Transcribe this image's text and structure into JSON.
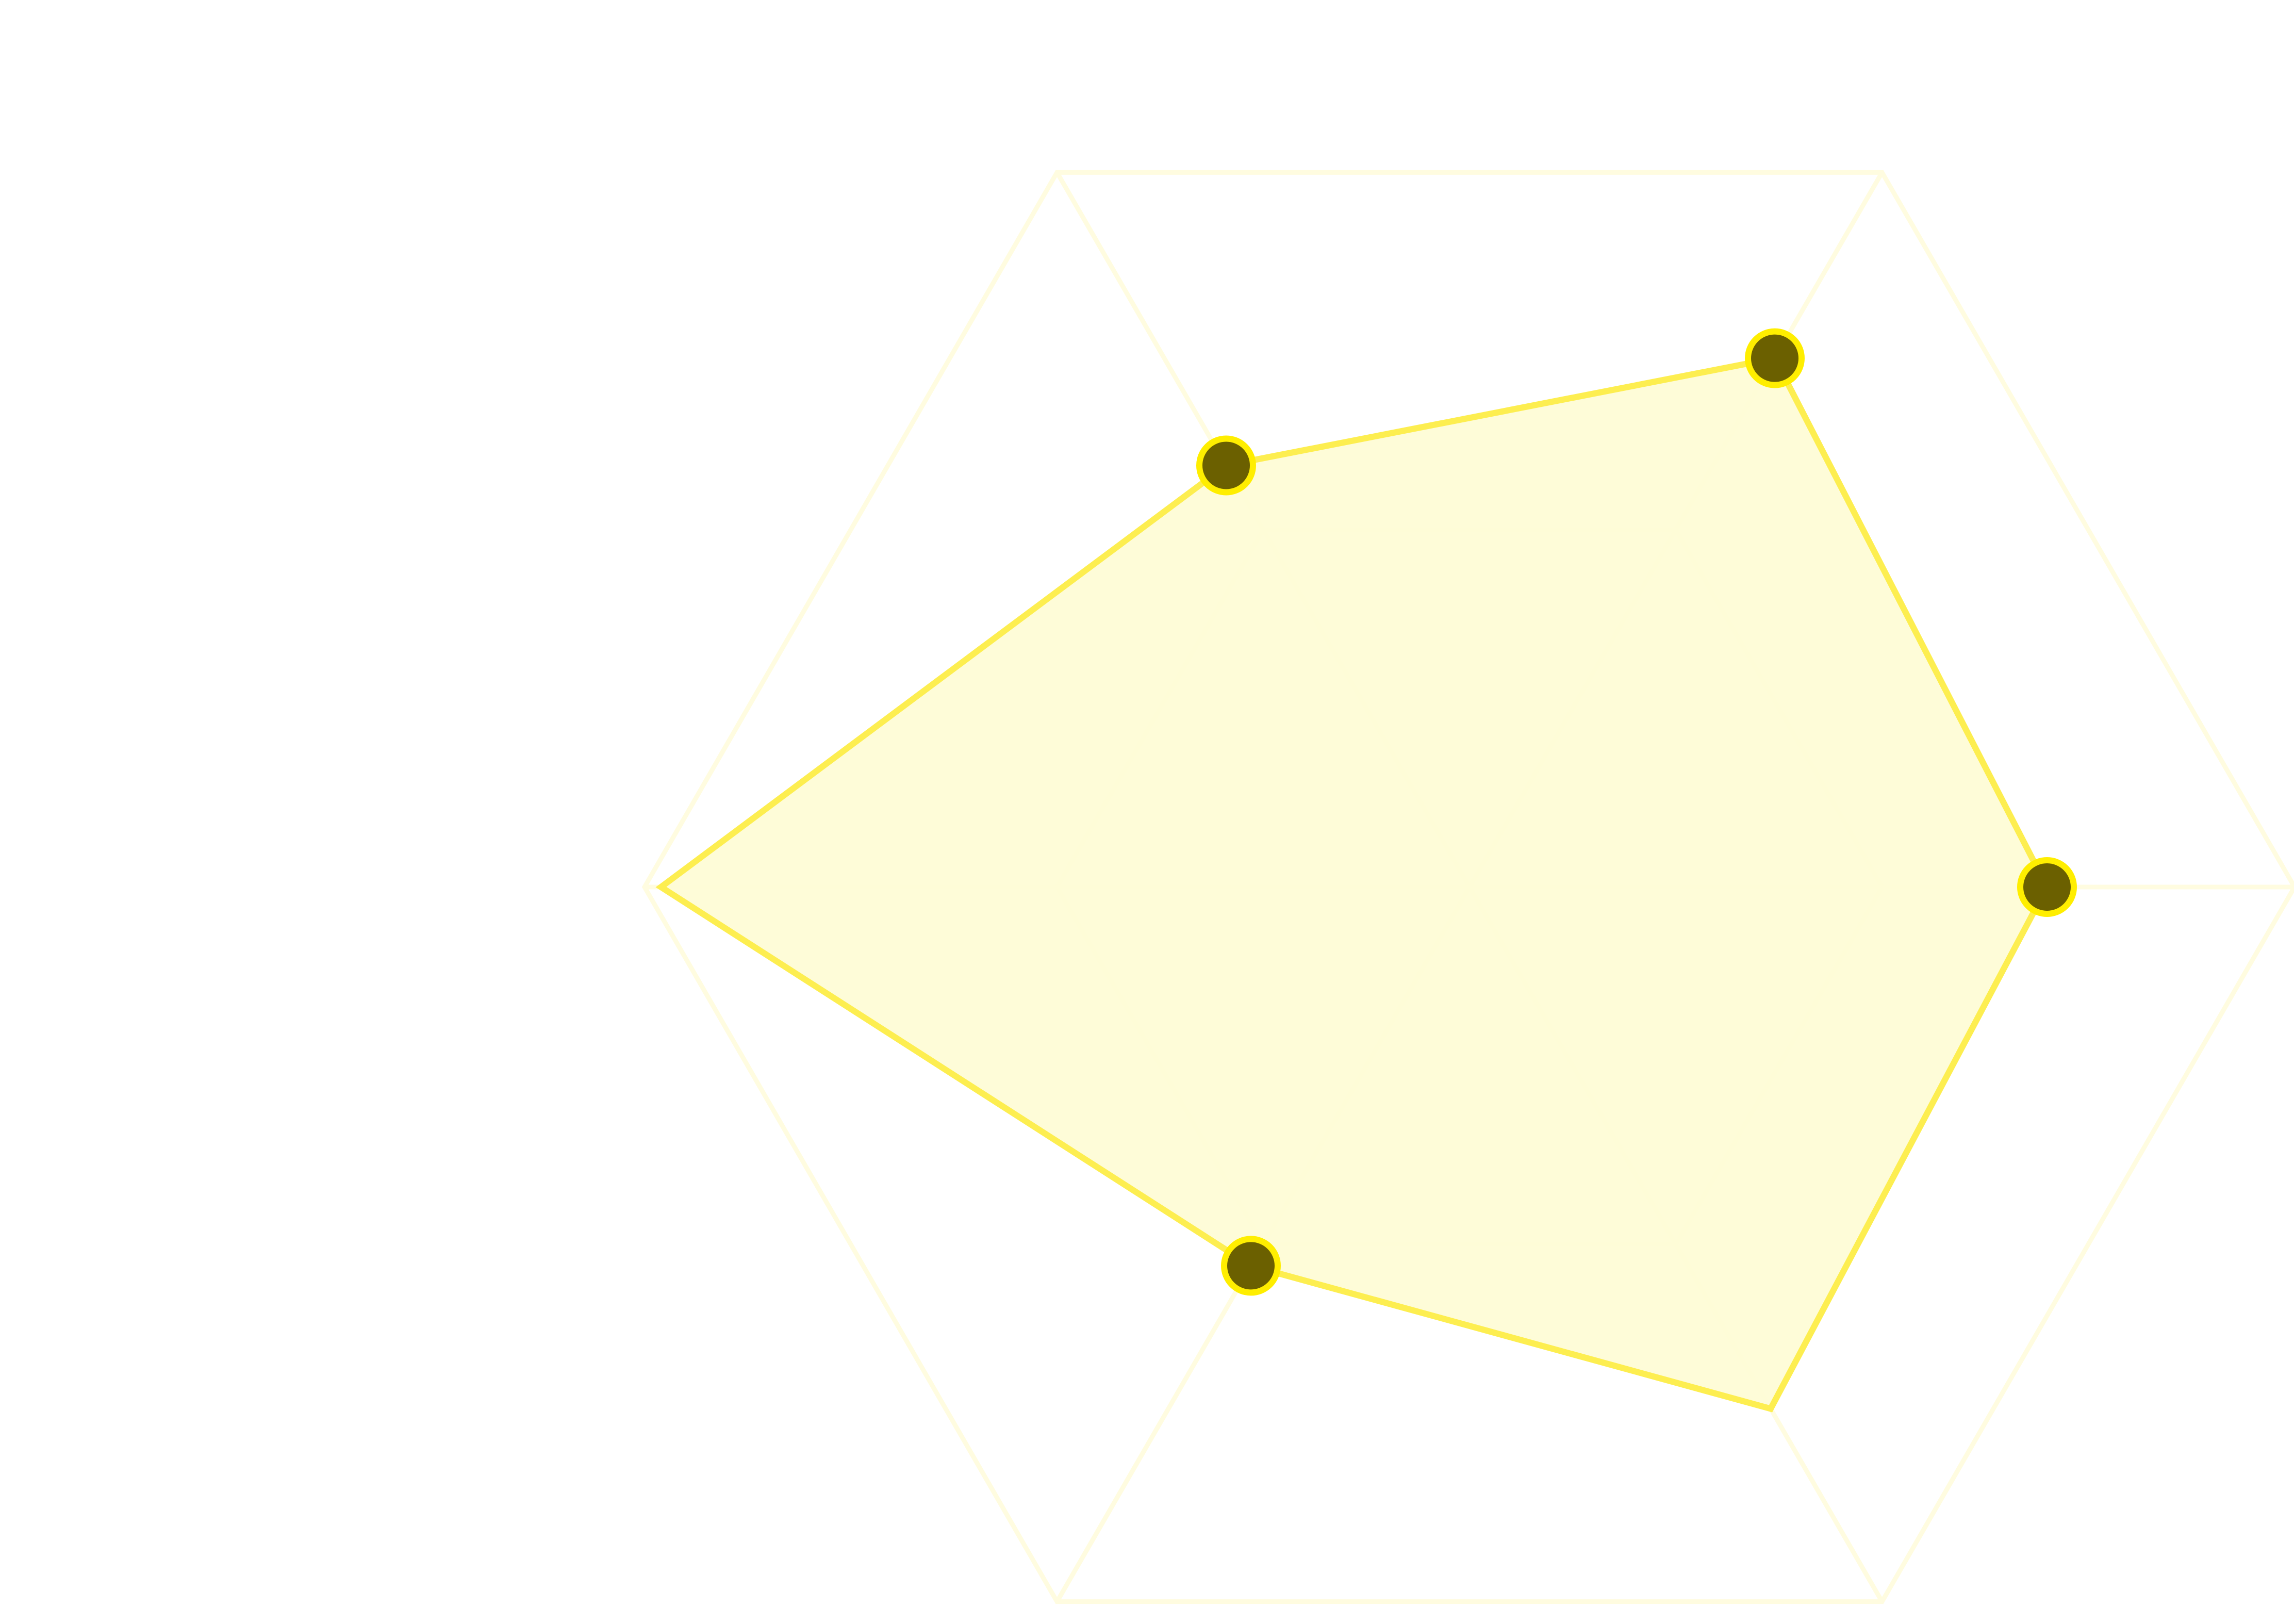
{
  "chart_data": {
    "type": "radar",
    "axes_count": 6,
    "range": [
      0,
      100
    ],
    "grid": true,
    "grid_levels": [
      50,
      100
    ],
    "legend": "none",
    "series": [
      {
        "values": [
          74,
          70,
          73,
          53,
          98,
          59
        ],
        "markers": [
          true,
          true,
          false,
          true,
          false,
          true
        ]
      }
    ],
    "colors": {
      "grid": "#fffce0",
      "line": "#fdee50",
      "fill": "#fefcd6",
      "marker_fill": "#6b6000",
      "marker_stroke": "#ffee00"
    }
  }
}
